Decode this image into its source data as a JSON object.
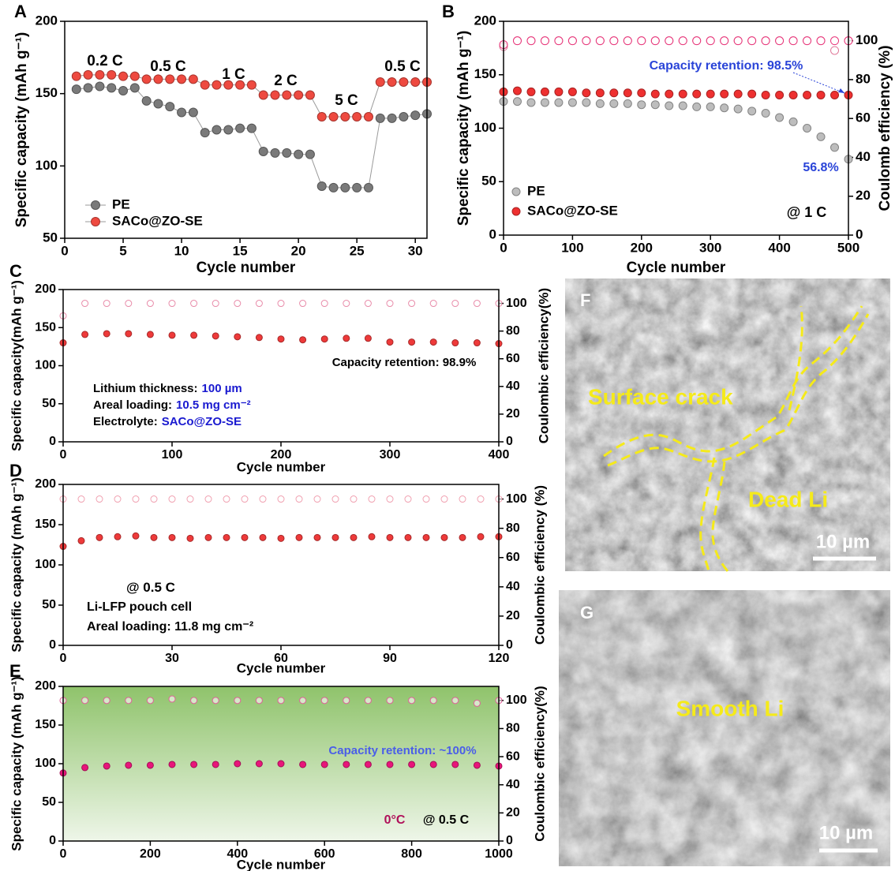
{
  "chart_data": [
    {
      "panel": "A",
      "type": "line",
      "x_label": "Cycle number",
      "y_label": "Specific capacity (mAh g⁻¹)",
      "x": [
        1,
        2,
        3,
        4,
        5,
        6,
        7,
        8,
        9,
        10,
        11,
        12,
        13,
        14,
        15,
        16,
        17,
        18,
        19,
        20,
        21,
        22,
        23,
        24,
        25,
        26,
        27,
        28,
        29,
        30,
        31
      ],
      "xlim": [
        0,
        31
      ],
      "xticks": [
        0,
        5,
        10,
        15,
        20,
        25,
        30
      ],
      "ylim": [
        50,
        200
      ],
      "yticks": [
        50,
        100,
        150,
        200
      ],
      "legend": "lower left",
      "series": [
        {
          "name": "PE",
          "color": "#7a7a7a",
          "values": [
            153,
            154,
            155,
            154,
            152,
            154,
            145,
            143,
            141,
            137,
            137,
            123,
            125,
            125,
            126,
            126,
            110,
            109,
            109,
            108,
            108,
            86,
            85,
            85,
            85,
            85,
            133,
            133,
            134,
            135,
            136
          ]
        },
        {
          "name": "SACo@ZO-SE",
          "color": "#ee4a40",
          "values": [
            162,
            163,
            163,
            163,
            162,
            162,
            160,
            160,
            160,
            160,
            160,
            156,
            156,
            156,
            156,
            156,
            149,
            149,
            149,
            149,
            149,
            134,
            134,
            134,
            134,
            134,
            158,
            158,
            158,
            158,
            158
          ]
        }
      ],
      "annotations": [
        {
          "text": "0.2 C"
        },
        {
          "text": "0.5 C"
        },
        {
          "text": "1 C"
        },
        {
          "text": "2 C"
        },
        {
          "text": "5 C"
        },
        {
          "text": "0.5 C"
        }
      ]
    },
    {
      "panel": "B",
      "type": "scatter",
      "x_label": "Cycle number",
      "y_label": "Specific capacity (mAh g⁻¹)",
      "y2_label": "Coulomb efficiency (%)",
      "x": [
        0,
        20,
        40,
        60,
        80,
        100,
        120,
        140,
        160,
        180,
        200,
        220,
        240,
        260,
        280,
        300,
        320,
        340,
        360,
        380,
        400,
        420,
        440,
        460,
        480,
        500
      ],
      "xlim": [
        0,
        500
      ],
      "xticks": [
        0,
        100,
        200,
        300,
        400,
        500
      ],
      "ylim": [
        0,
        200
      ],
      "yticks": [
        0,
        50,
        100,
        150,
        200
      ],
      "y2lim": [
        0,
        110
      ],
      "y2ticks": [
        0,
        20,
        40,
        60,
        80,
        100
      ],
      "legend": "lower left",
      "series": [
        {
          "color": "#e07a9a",
          "filled": false,
          "axis": "y2",
          "values": [
            97,
            100,
            100,
            100,
            100,
            100,
            100,
            100,
            100,
            100,
            100,
            100,
            100,
            100,
            100,
            100,
            100,
            100,
            100,
            100,
            100,
            100,
            100,
            100,
            95,
            100
          ]
        },
        {
          "color": "#e8357a",
          "filled": false,
          "axis": "y2",
          "values": [
            98,
            100,
            100,
            100,
            100,
            100,
            100,
            100,
            100,
            100,
            100,
            100,
            100,
            100,
            100,
            100,
            100,
            100,
            100,
            100,
            100,
            100,
            100,
            100,
            100,
            100
          ]
        },
        {
          "name": "PE",
          "color": "#bdbdbd",
          "values": [
            125,
            125,
            124,
            124,
            124,
            124,
            124,
            123,
            123,
            123,
            122,
            122,
            121,
            121,
            120,
            120,
            119,
            118,
            116,
            114,
            110,
            106,
            100,
            92,
            82,
            71
          ]
        },
        {
          "name": "SACo@ZO-SE",
          "color": "#ee3030",
          "values": [
            134,
            135,
            134,
            134,
            134,
            134,
            133,
            133,
            133,
            133,
            133,
            132,
            132,
            132,
            132,
            132,
            132,
            132,
            132,
            131,
            131,
            131,
            131,
            131,
            131,
            131
          ]
        }
      ],
      "annotations": [
        {
          "text": "Capacity retention: 98.5%",
          "color": "#2a44d8"
        },
        {
          "text": "56.8%",
          "color": "#2a44d8"
        },
        {
          "text": "@ 1 C",
          "color": "#000000"
        }
      ]
    },
    {
      "panel": "C",
      "type": "scatter",
      "x_label": "Cycle number",
      "y_label": "Specific capacity(mAh g⁻¹)",
      "y2_label": "Coulombic efficiency(%)",
      "x": [
        0,
        20,
        40,
        60,
        80,
        100,
        120,
        140,
        160,
        180,
        200,
        220,
        240,
        260,
        280,
        300,
        320,
        340,
        360,
        380,
        400
      ],
      "xlim": [
        0,
        400
      ],
      "xticks": [
        0,
        100,
        200,
        300,
        400
      ],
      "ylim": [
        0,
        200
      ],
      "yticks": [
        0,
        50,
        100,
        150,
        200
      ],
      "y2lim": [
        0,
        110
      ],
      "y2ticks": [
        0,
        20,
        40,
        60,
        80,
        100
      ],
      "series": [
        {
          "color": "#e88aa8",
          "filled": false,
          "axis": "y2",
          "values": [
            91,
            100,
            100,
            100,
            100,
            100,
            100,
            100,
            100,
            100,
            100,
            100,
            100,
            100,
            100,
            100,
            100,
            100,
            100,
            100,
            100
          ]
        },
        {
          "color": "#ee3a3a",
          "values": [
            130,
            141,
            142,
            142,
            141,
            140,
            140,
            139,
            138,
            137,
            135,
            134,
            135,
            136,
            136,
            131,
            131,
            131,
            130,
            130,
            129
          ]
        }
      ],
      "annotations": [
        {
          "text": "Capacity retention: 98.9%"
        },
        {
          "text": "Lithium thickness:",
          "highlight": "100 µm",
          "highlight_color": "#1a1ad0"
        },
        {
          "text": "Areal loading:",
          "highlight": "10.5 mg cm⁻²",
          "highlight_color": "#1a1ad0"
        },
        {
          "text": "Electrolyte:",
          "highlight": "SACo@ZO-SE",
          "highlight_color": "#1a1ad0"
        }
      ]
    },
    {
      "panel": "D",
      "type": "scatter",
      "x_label": "Cycle number",
      "y_label": "Specific capacity (mAh g⁻¹)",
      "y2_label": "Coulombic efficiency (%)",
      "x": [
        0,
        5,
        10,
        15,
        20,
        25,
        30,
        35,
        40,
        45,
        50,
        55,
        60,
        65,
        70,
        75,
        80,
        85,
        90,
        95,
        100,
        105,
        110,
        115,
        120
      ],
      "xlim": [
        0,
        120
      ],
      "xticks": [
        0,
        30,
        60,
        90,
        120
      ],
      "ylim": [
        0,
        200
      ],
      "yticks": [
        0,
        50,
        100,
        150,
        200
      ],
      "y2lim": [
        0,
        110
      ],
      "y2ticks": [
        0,
        20,
        40,
        60,
        80,
        100
      ],
      "series": [
        {
          "color": "#f0a0b0",
          "filled": false,
          "axis": "y2",
          "values": [
            100,
            100,
            100,
            100,
            100,
            100,
            100,
            100,
            100,
            100,
            100,
            100,
            100,
            100,
            100,
            100,
            100,
            100,
            100,
            100,
            100,
            100,
            100,
            100,
            100
          ]
        },
        {
          "color": "#ee3a3a",
          "values": [
            123,
            130,
            134,
            135,
            136,
            134,
            134,
            133,
            134,
            134,
            134,
            134,
            133,
            134,
            134,
            134,
            134,
            135,
            134,
            134,
            134,
            134,
            134,
            135,
            135
          ]
        }
      ],
      "annotations": [
        {
          "text": "@ 0.5 C"
        },
        {
          "text": "Li-LFP pouch cell"
        },
        {
          "text": "Areal loading: 11.8 mg cm⁻²"
        }
      ]
    },
    {
      "panel": "E",
      "type": "scatter",
      "x_label": "Cycle number",
      "y_label": "Specific capacity (mAh g⁻¹)",
      "y2_label": "Coulombic efficiency(%)",
      "x": [
        0,
        50,
        100,
        150,
        200,
        250,
        300,
        350,
        400,
        450,
        500,
        550,
        600,
        650,
        700,
        750,
        800,
        850,
        900,
        950,
        1000
      ],
      "xlim": [
        0,
        1000
      ],
      "xticks": [
        0,
        200,
        400,
        600,
        800,
        1000
      ],
      "ylim": [
        0,
        200
      ],
      "yticks": [
        0,
        50,
        100,
        150,
        200
      ],
      "y2lim": [
        0,
        110
      ],
      "y2ticks": [
        0,
        20,
        40,
        60,
        80,
        100
      ],
      "background": "#8fc36b",
      "series": [
        {
          "color": "#e0609a",
          "filled": false,
          "axis": "y2",
          "values": [
            100,
            100,
            100,
            100,
            100,
            101,
            100,
            100,
            100,
            100,
            100,
            100,
            100,
            100,
            100,
            100,
            100,
            100,
            100,
            98,
            100
          ]
        },
        {
          "color": "#e8157a",
          "values": [
            88,
            95,
            97,
            98,
            98,
            99,
            99,
            99,
            100,
            100,
            100,
            99,
            99,
            99,
            99,
            99,
            99,
            99,
            99,
            98,
            97
          ]
        }
      ],
      "annotations": [
        {
          "text": "Capacity retention: ~100%",
          "color": "#4a5ee8"
        },
        {
          "text": "0°C",
          "color": "#b0105a"
        },
        {
          "text": "@ 0.5 C",
          "color": "#000000"
        }
      ]
    }
  ],
  "images": [
    {
      "panel": "F",
      "labels": [
        "Surface crack",
        "Dead Li"
      ],
      "scale_bar": "10 µm"
    },
    {
      "panel": "G",
      "labels": [
        "Smooth Li"
      ],
      "scale_bar": "10 µm"
    }
  ]
}
